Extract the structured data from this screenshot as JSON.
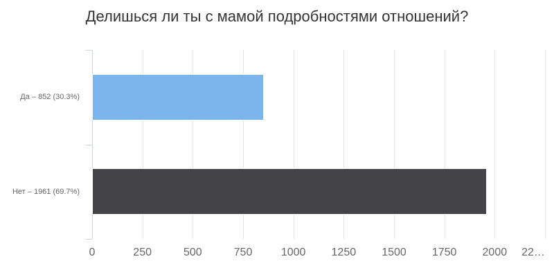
{
  "title": "Делишься ли ты с мамой подробностями отношений?",
  "chart_data": {
    "type": "bar",
    "orientation": "horizontal",
    "title": "Делишься ли ты с мамой подробностями отношений?",
    "categories": [
      "Да",
      "Нет"
    ],
    "values": [
      852,
      1961
    ],
    "percentages": [
      30.3,
      69.7
    ],
    "category_labels": [
      "Да – 852 (30.3%)",
      "Нет – 1961 (69.7%)"
    ],
    "bar_colors": [
      "#7cb5ec",
      "#434348"
    ],
    "xlabel": "",
    "ylabel": "",
    "xlim": [
      0,
      2250
    ],
    "x_ticks": [
      0,
      250,
      500,
      750,
      1000,
      1250,
      1500,
      1750,
      2000,
      2250
    ],
    "x_tick_labels": [
      "0",
      "250",
      "500",
      "750",
      "1000",
      "1250",
      "1500",
      "1750",
      "2000",
      "22…"
    ],
    "grid": true,
    "legend": false,
    "colors": {
      "background": "#ffffff",
      "grid": "#e6e6e6",
      "axis_line": "#ccd6eb",
      "tick_label": "#666666",
      "title": "#333333"
    }
  }
}
